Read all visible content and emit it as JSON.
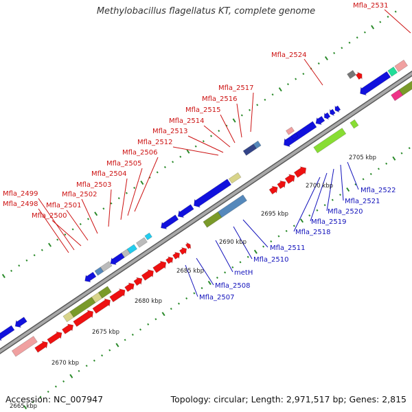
{
  "title": "Methylobacillus flagellatus KT, complete genome",
  "footer": {
    "accession": "Accession: NC_007947",
    "summary": "Topology: circular; Length: 2,971,517 bp; Genes: 2,815"
  },
  "colors": {
    "backbone": "#8a8a8a",
    "tick": "#2a8a2a",
    "forward_label": "#cc1111",
    "reverse_label": "#1111bb",
    "red_gene": "#ee1111",
    "blue_gene": "#1111dd",
    "olive_feature": "#7a9a2a",
    "khaki_feature": "#d8d48a",
    "steel_feature": "#5588bb",
    "gray_gene": "#bbbbbb",
    "pink_feature": "#f0a0a0",
    "cyan_feature": "#22ccee",
    "lime_feature": "#88dd33",
    "magenta_feature": "#ee3388",
    "teal_feature": "#22dd99",
    "darkgray_gene": "#777777",
    "navy_gene": "#334488"
  },
  "diagram": {
    "scale": {
      "tick_labels": [
        "2665 kbp",
        "2670 kbp",
        "2675 kbp",
        "2680 kbp",
        "2685 kbp",
        "2690 kbp",
        "2695 kbp",
        "2700 kbp",
        "2705 kbp"
      ]
    },
    "forward_labels": [
      "Mfla_2531",
      "Mfla_2524",
      "Mfla_2517",
      "Mfla_2516",
      "Mfla_2515",
      "Mfla_2514",
      "Mfla_2513",
      "Mfla_2512",
      "Mfla_2506",
      "Mfla_2505",
      "Mfla_2504",
      "Mfla_2503",
      "Mfla_2502",
      "Mfla_2501",
      "Mfla_2500",
      "Mfla_2499",
      "Mfla_2498"
    ],
    "reverse_labels": [
      "Mfla_2522",
      "Mfla_2521",
      "Mfla_2520",
      "Mfla_2519",
      "Mfla_2518",
      "Mfla_2511",
      "Mfla_2510",
      "metH",
      "Mfla_2508",
      "Mfla_2507"
    ]
  }
}
